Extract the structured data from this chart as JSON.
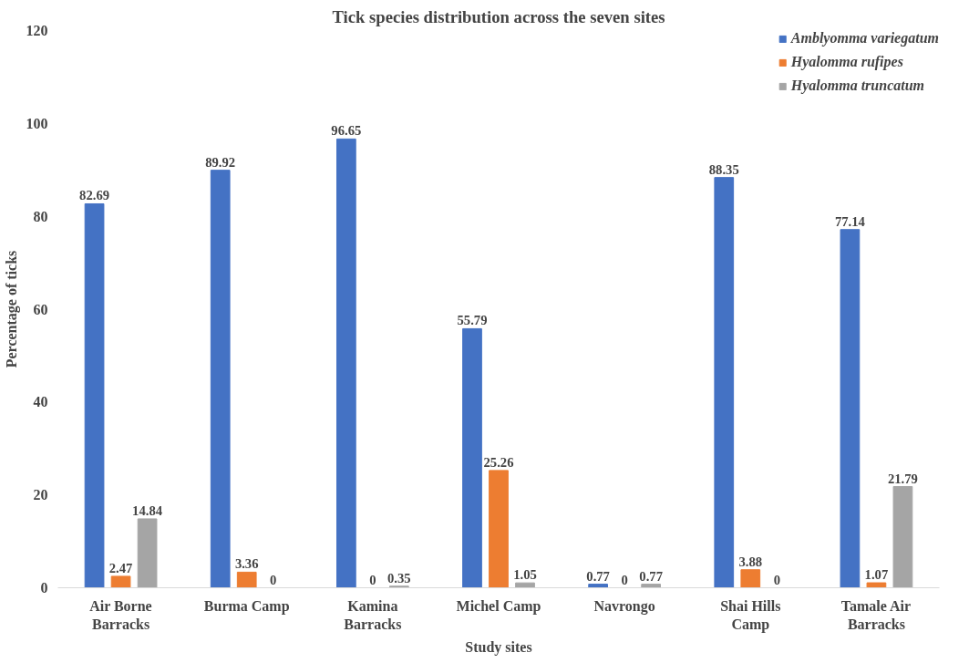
{
  "chart_data": {
    "type": "bar",
    "title": "Tick species distribution across the seven sites",
    "xlabel": "Study sites",
    "ylabel": "Percentage of ticks",
    "categories": [
      "Air Borne\nBarracks",
      "Burma Camp",
      "Kamina\nBarracks",
      "Michel Camp",
      "Navrongo",
      "Shai Hills\nCamp",
      "Tamale Air\nBarracks"
    ],
    "series": [
      {
        "name": "Amblyomma variegatum",
        "color": "#4472c4",
        "values": [
          82.69,
          89.92,
          96.65,
          55.79,
          0.77,
          88.35,
          77.14
        ]
      },
      {
        "name": "Hyalomma rufipes",
        "color": "#ed7d31",
        "values": [
          2.47,
          3.36,
          0,
          25.26,
          0,
          3.88,
          1.07
        ]
      },
      {
        "name": "Hyalomma truncatum",
        "color": "#a5a5a5",
        "values": [
          14.84,
          0,
          0.35,
          1.05,
          0.77,
          0,
          21.79
        ]
      }
    ],
    "ylim": [
      0,
      120
    ],
    "yticks": [
      0,
      20,
      40,
      60,
      80,
      100,
      120
    ],
    "grid": false,
    "legend": "top right",
    "data_labels": true
  }
}
